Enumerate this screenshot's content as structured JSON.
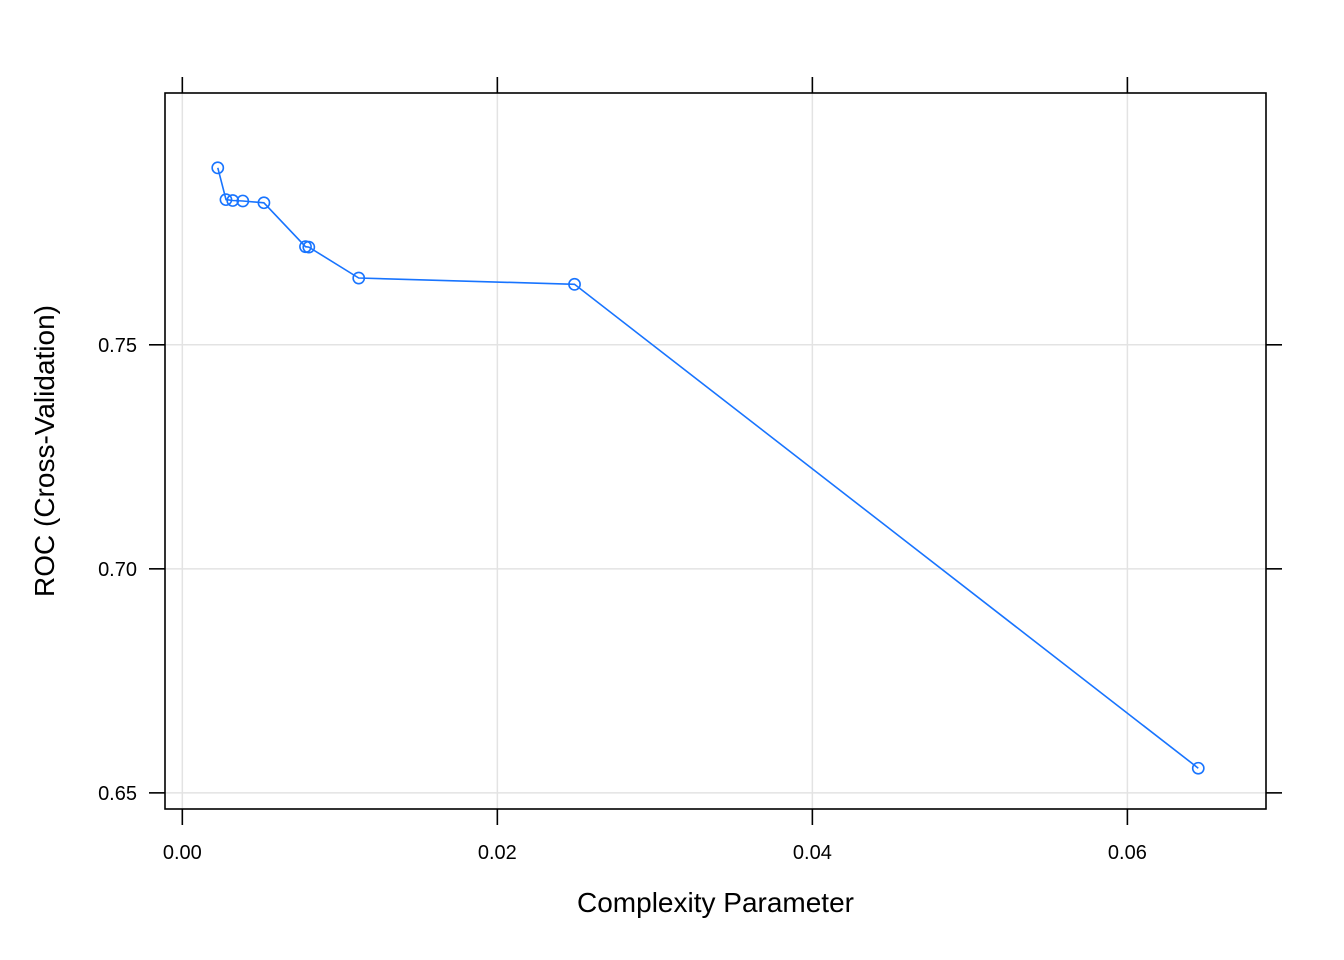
{
  "chart_data": {
    "type": "line",
    "title": "",
    "xlabel": "Complexity Parameter",
    "ylabel": "ROC (Cross-Validation)",
    "xlim": [
      -0.0011,
      0.0688
    ],
    "ylim": [
      0.6464,
      0.8062
    ],
    "x_ticks": [
      0.0,
      0.02,
      0.04,
      0.06
    ],
    "x_tick_labels": [
      "0.00",
      "0.02",
      "0.04",
      "0.06"
    ],
    "y_ticks": [
      0.65,
      0.7,
      0.75
    ],
    "y_tick_labels": [
      "0.65",
      "0.70",
      "0.75"
    ],
    "grid": true,
    "series": [
      {
        "color": "#1874ff",
        "marker": "open-circle",
        "x": [
          0.00225,
          0.00277,
          0.0032,
          0.00384,
          0.00518,
          0.00782,
          0.00803,
          0.0112,
          0.0249,
          0.0645
        ],
        "y": [
          0.7895,
          0.7824,
          0.7822,
          0.7821,
          0.7817,
          0.7719,
          0.7718,
          0.7649,
          0.7635,
          0.6555
        ]
      }
    ]
  }
}
